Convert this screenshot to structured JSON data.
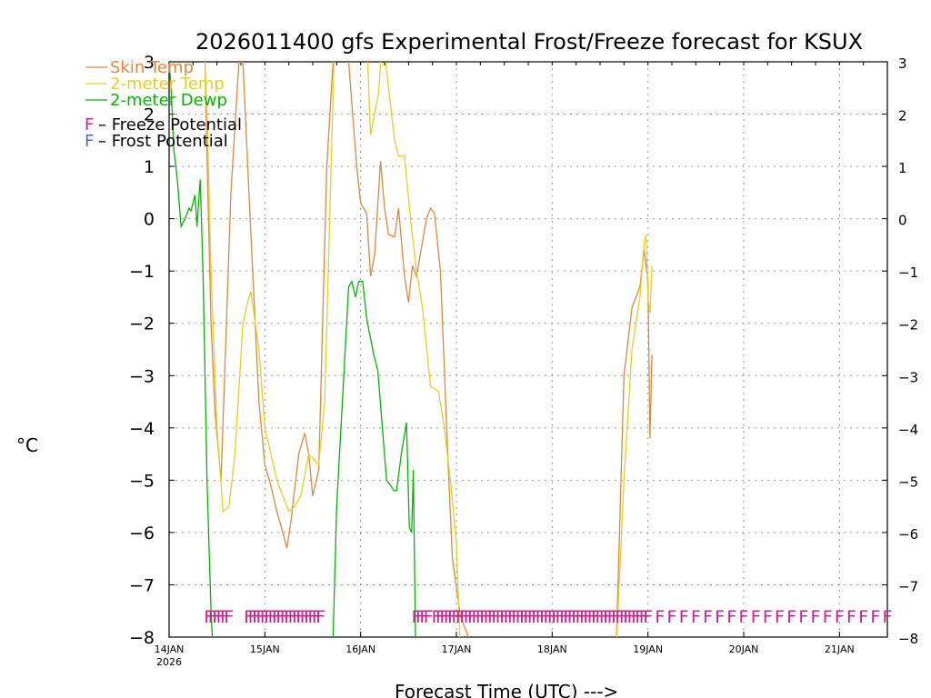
{
  "chart_data": {
    "type": "line",
    "title": "2026011400 gfs Experimental Frost/Freeze forecast for KSUX",
    "xlabel": "Forecast Time (UTC) --->",
    "ylabel": "°C",
    "ylim": [
      -8,
      3
    ],
    "yticks": [
      "3",
      "2",
      "1",
      "0",
      "−1",
      "−2",
      "−3",
      "−4",
      "−5",
      "−6",
      "−7",
      "−8"
    ],
    "y_tick_values": [
      3,
      2,
      1,
      0,
      -1,
      -2,
      -3,
      -4,
      -5,
      -6,
      -7,
      -8
    ],
    "x_unit": "hours since 2026-01-14 00Z",
    "xlim": [
      0,
      180
    ],
    "xticks": [
      {
        "label": "14JAN",
        "sub": "2026",
        "hour": 0
      },
      {
        "label": "15JAN",
        "sub": "",
        "hour": 24
      },
      {
        "label": "16JAN",
        "sub": "",
        "hour": 48
      },
      {
        "label": "17JAN",
        "sub": "",
        "hour": 72
      },
      {
        "label": "18JAN",
        "sub": "",
        "hour": 96
      },
      {
        "label": "19JAN",
        "sub": "",
        "hour": 120
      },
      {
        "label": "20JAN",
        "sub": "",
        "hour": 144
      },
      {
        "label": "21JAN",
        "sub": "",
        "hour": 168
      }
    ],
    "grid": true,
    "series": [
      {
        "name": "Skin Temp",
        "color": "#e08840",
        "x": [
          9,
          9.5,
          10.5,
          11.5,
          13,
          15.5,
          17.5,
          18.5,
          20,
          22.5,
          24,
          25.5,
          27,
          28.5,
          29.5,
          30.5,
          32.5,
          34,
          35,
          36,
          37.5,
          39.5,
          41.5,
          43,
          44.5,
          47,
          48,
          49.5,
          50.5,
          51.5,
          53,
          54,
          55,
          56.5,
          57.5,
          59,
          60,
          61,
          62,
          64.5,
          65.5,
          66.5,
          68,
          70,
          71,
          73,
          75,
          77
        ],
        "y": [
          3,
          1.2,
          -2,
          -3.7,
          -5,
          0.5,
          3,
          3,
          0.5,
          -3.5,
          -4.7,
          -5.1,
          -5.6,
          -6,
          -6.3,
          -5.8,
          -4.5,
          -4.1,
          -4.5,
          -5.3,
          -4.8,
          1,
          3.5,
          3.5,
          3.5,
          1,
          0.3,
          0.1,
          -1.1,
          -0.7,
          1.1,
          0.2,
          -0.3,
          -0.35,
          0.2,
          -1.1,
          -1.6,
          -0.9,
          -1.1,
          0,
          0.2,
          0.1,
          -1,
          -4.8,
          -6.5,
          -7.6,
          -8,
          -8.3
        ]
      },
      {
        "name": "2-meter Temp",
        "color": "#e8d020",
        "x": [
          9,
          9.5,
          10.5,
          12,
          13.5,
          15,
          16.5,
          18.5,
          20,
          20.5,
          22.5,
          24,
          25.5,
          27,
          28.5,
          30,
          31.5,
          33,
          35,
          37.5,
          39,
          41.5,
          42.5,
          47,
          49.5,
          50.5,
          52.5,
          53.5,
          55,
          56.5,
          57.5,
          59,
          60.5,
          62,
          63.5,
          65.5,
          67.5,
          69,
          70.5,
          72,
          73
        ],
        "y": [
          3,
          2,
          -1,
          -4,
          -5.6,
          -5.5,
          -4.5,
          -2,
          -1.5,
          -1.4,
          -2.5,
          -4,
          -4.5,
          -5,
          -5.3,
          -5.6,
          -5.5,
          -5.3,
          -4.5,
          -4.7,
          -3.5,
          3.5,
          3.5,
          3.5,
          3.5,
          1.6,
          2.4,
          3.5,
          2.5,
          1.5,
          1.2,
          1.2,
          0,
          -1,
          -1.7,
          -3.2,
          -3.3,
          -4,
          -5,
          -6.2,
          -8.3
        ]
      },
      {
        "name": "2-meter Dewp",
        "color": "#00b800",
        "x": [
          0,
          0.5,
          1.2,
          2,
          3,
          4,
          5,
          5.5,
          6,
          6.5,
          7,
          7.8,
          8.5,
          9.5,
          10.5,
          11,
          41,
          42,
          45,
          45.8,
          46.7,
          47.5,
          48.5,
          49.5,
          50,
          51.3,
          52.3,
          54.5,
          55.5,
          56.3,
          57,
          58.2,
          59.5,
          60.2,
          60.8,
          61.2,
          61.8
        ],
        "y": [
          3,
          2.5,
          1.3,
          0.8,
          -0.15,
          0,
          0.2,
          0.15,
          0.3,
          0.45,
          -0.15,
          0.75,
          -1,
          -5,
          -7.5,
          -8.3,
          -8.3,
          -5.5,
          -1.3,
          -1.2,
          -1.5,
          -1.2,
          -1.2,
          -1.9,
          -2.1,
          -2.6,
          -2.9,
          -5,
          -5.1,
          -5.2,
          -5.2,
          -4.5,
          -3.9,
          -5.9,
          -6,
          -4.8,
          -8.3
        ]
      },
      {
        "name": "Skin Temp (late)",
        "color": "#e08840",
        "x": [
          112,
          114,
          116,
          118,
          119,
          120,
          120.5,
          121
        ],
        "y": [
          -8.3,
          -3,
          -1.7,
          -1.3,
          -0.6,
          -1.2,
          -4.2,
          -2.6
        ]
      },
      {
        "name": "2-meter Temp (late)",
        "color": "#e8d020",
        "x": [
          112,
          114,
          116,
          118,
          119,
          119.5,
          120,
          120.5,
          121
        ],
        "y": [
          -8.3,
          -5,
          -2.5,
          -1.5,
          -0.5,
          -0.3,
          -1.5,
          -1.8,
          -0.9
        ]
      }
    ],
    "legend": {
      "position": "top-left",
      "entries": [
        {
          "text": "Skin Temp",
          "color": "#e08840"
        },
        {
          "text": "2-meter Temp",
          "color": "#e8d020"
        },
        {
          "text": "2-meter Dewp",
          "color": "#00b800"
        }
      ],
      "flags": [
        {
          "mark": "F",
          "text": " – Freeze Potential",
          "color": "#cc2090"
        },
        {
          "mark": "F",
          "text": " – Frost Potential",
          "color": "#5060e0"
        }
      ]
    },
    "freeze_potential": {
      "letter": "F",
      "color": "#cc2090",
      "y": -7.5,
      "hours": [
        10,
        11,
        12,
        13,
        14,
        15,
        20,
        21,
        22,
        23,
        24,
        25,
        26,
        27,
        28,
        29,
        30,
        31,
        32,
        33,
        34,
        35,
        36,
        37,
        38,
        62,
        63,
        64,
        65,
        67,
        68,
        69,
        70,
        71,
        72,
        73,
        74,
        75,
        76,
        77,
        78,
        79,
        80,
        81,
        82,
        83,
        84,
        85,
        86,
        87,
        88,
        89,
        90,
        91,
        92,
        93,
        94,
        95,
        96,
        97,
        98,
        99,
        100,
        101,
        102,
        103,
        104,
        105,
        106,
        107,
        108,
        109,
        110,
        111,
        112,
        113,
        114,
        115,
        116,
        117,
        118,
        119,
        120,
        123,
        126,
        129,
        132,
        135,
        138,
        141,
        144,
        147,
        150,
        153,
        156,
        159,
        162,
        165,
        168,
        171,
        174,
        177,
        180
      ]
    }
  }
}
